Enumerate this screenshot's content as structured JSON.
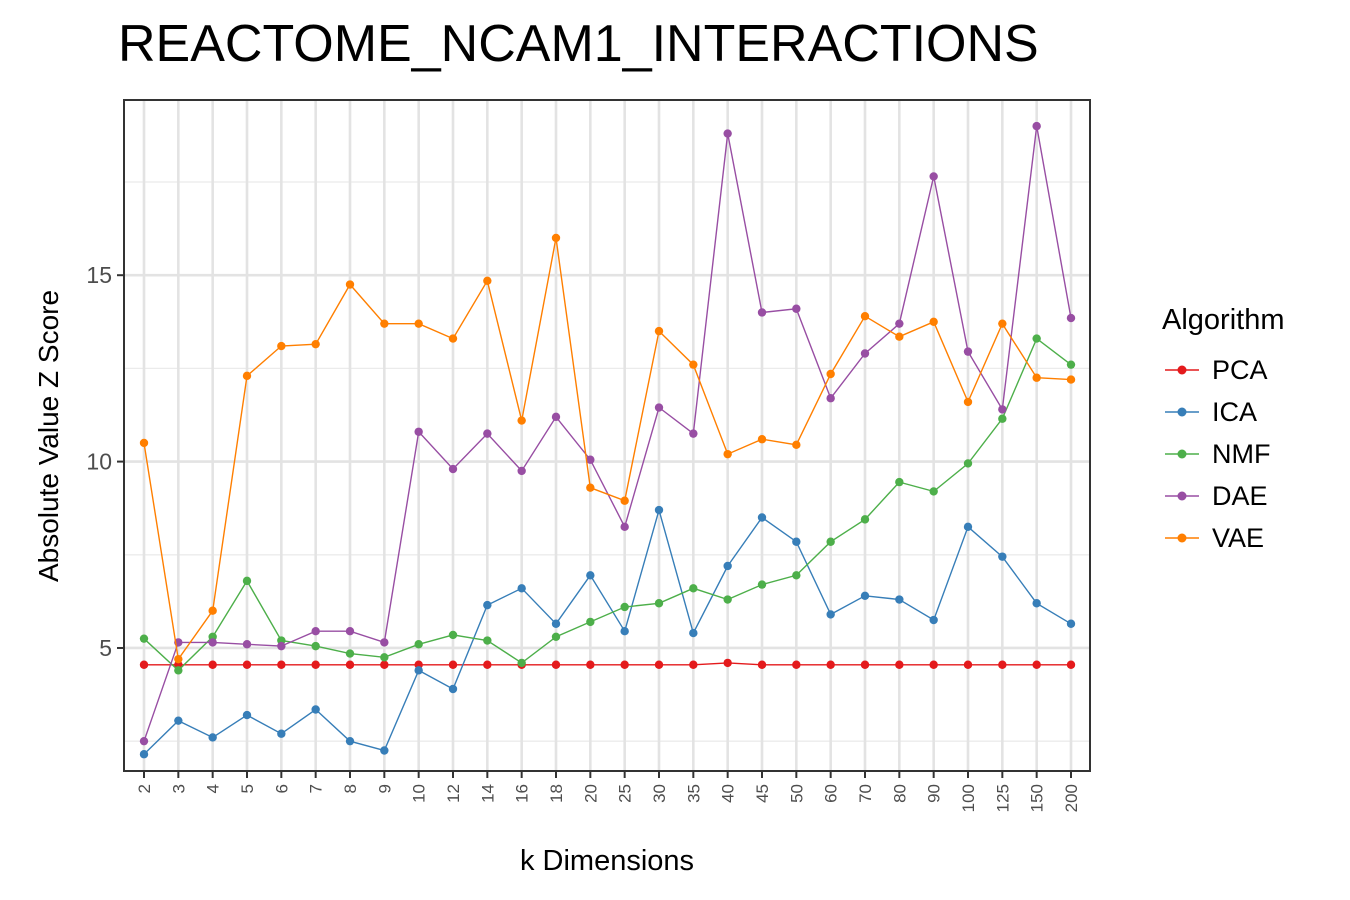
{
  "chart_data": {
    "type": "line",
    "title": "REACTOME_NCAM1_INTERACTIONS",
    "xlabel": "k Dimensions",
    "ylabel": "Absolute Value Z Score",
    "categories": [
      "2",
      "3",
      "4",
      "5",
      "6",
      "7",
      "8",
      "9",
      "10",
      "12",
      "14",
      "16",
      "18",
      "20",
      "25",
      "30",
      "35",
      "40",
      "45",
      "50",
      "60",
      "70",
      "80",
      "90",
      "100",
      "125",
      "150",
      "200"
    ],
    "ylim": [
      1.7,
      19.7
    ],
    "yticks": [
      5,
      10,
      15
    ],
    "ytick_labels": [
      "5",
      "10",
      "15"
    ],
    "grid": true,
    "legend": {
      "title": "Algorithm",
      "position": "right"
    },
    "series": [
      {
        "name": "PCA",
        "color": "#e41a1c",
        "values": [
          4.55,
          4.55,
          4.55,
          4.55,
          4.55,
          4.55,
          4.55,
          4.55,
          4.55,
          4.55,
          4.55,
          4.55,
          4.55,
          4.55,
          4.55,
          4.55,
          4.55,
          4.6,
          4.55,
          4.55,
          4.55,
          4.55,
          4.55,
          4.55,
          4.55,
          4.55,
          4.55,
          4.55
        ]
      },
      {
        "name": "ICA",
        "color": "#377eb8",
        "values": [
          2.15,
          3.05,
          2.6,
          3.2,
          2.7,
          3.35,
          2.5,
          2.25,
          4.4,
          3.9,
          6.15,
          6.6,
          5.65,
          6.95,
          5.45,
          8.7,
          5.4,
          7.2,
          8.5,
          7.85,
          5.9,
          6.4,
          6.3,
          5.75,
          8.25,
          7.45,
          6.2,
          5.65
        ]
      },
      {
        "name": "NMF",
        "color": "#4daf4a",
        "values": [
          5.25,
          4.4,
          5.3,
          6.8,
          5.2,
          5.05,
          4.85,
          4.75,
          5.1,
          5.35,
          5.2,
          4.6,
          5.3,
          5.7,
          6.1,
          6.2,
          6.6,
          6.3,
          6.7,
          6.95,
          7.85,
          8.45,
          9.45,
          9.2,
          9.95,
          11.15,
          13.3,
          12.6
        ]
      },
      {
        "name": "DAE",
        "color": "#984ea3",
        "values": [
          2.5,
          5.15,
          5.15,
          5.1,
          5.05,
          5.45,
          5.45,
          5.15,
          10.8,
          9.8,
          10.75,
          9.75,
          11.2,
          10.05,
          8.25,
          11.45,
          10.75,
          18.8,
          14.0,
          14.1,
          11.7,
          12.9,
          13.7,
          17.65,
          12.95,
          11.4,
          19.0,
          13.85
        ]
      },
      {
        "name": "VAE",
        "color": "#ff7f00",
        "values": [
          10.5,
          4.7,
          6.0,
          12.3,
          13.1,
          13.15,
          14.75,
          13.7,
          13.7,
          13.3,
          14.85,
          11.1,
          16.0,
          9.3,
          8.95,
          13.5,
          12.6,
          10.2,
          10.6,
          10.45,
          12.35,
          13.9,
          13.35,
          13.75,
          11.6,
          13.7,
          12.25,
          12.2
        ]
      }
    ]
  }
}
